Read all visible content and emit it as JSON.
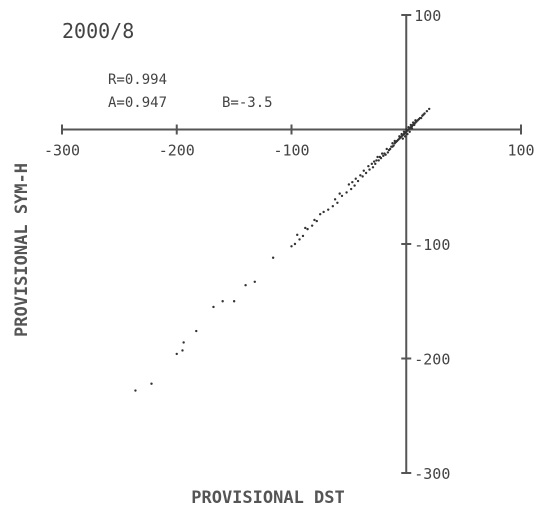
{
  "chart_data": {
    "type": "scatter",
    "title": "2000/8",
    "xlabel": "PROVISIONAL DST",
    "ylabel": "PROVISIONAL SYM-H",
    "xlim": [
      -300,
      100
    ],
    "ylim": [
      -300,
      100
    ],
    "x_ticks": [
      -300,
      -200,
      -100,
      100
    ],
    "y_ticks": [
      100,
      -100,
      -200,
      -300
    ],
    "x_tick_labels": [
      "-300",
      "-200",
      "-100",
      "100"
    ],
    "y_tick_labels": [
      "100",
      "-100",
      "-200",
      "-300"
    ],
    "grid": false,
    "legend": "none",
    "stats": {
      "r": "R=0.994",
      "a": "A=0.947",
      "b": "B=-3.5"
    },
    "series": [
      {
        "points": [
          [
            -236,
            -228
          ],
          [
            -222,
            -222
          ],
          [
            -200,
            -196
          ],
          [
            -195,
            -193
          ],
          [
            -194,
            -186
          ],
          [
            -183,
            -176
          ],
          [
            -168,
            -155
          ],
          [
            -160,
            -150
          ],
          [
            -150,
            -150
          ],
          [
            -140,
            -136
          ],
          [
            -132,
            -133
          ],
          [
            -116,
            -112
          ],
          [
            -100,
            -102
          ],
          [
            -97,
            -100
          ],
          [
            -93,
            -96
          ],
          [
            -90,
            -93
          ],
          [
            -86,
            -87
          ],
          [
            -82,
            -84
          ],
          [
            -78,
            -80
          ],
          [
            -72,
            -72
          ],
          [
            -68,
            -70
          ],
          [
            -64,
            -67
          ],
          [
            -60,
            -64
          ],
          [
            -56,
            -58
          ],
          [
            -52,
            -55
          ],
          [
            -48,
            -52
          ],
          [
            -45,
            -49
          ],
          [
            -42,
            -45
          ],
          [
            -38,
            -41
          ],
          [
            -35,
            -38
          ],
          [
            -32,
            -35
          ],
          [
            -29,
            -33
          ],
          [
            -27,
            -30
          ],
          [
            -24,
            -27
          ],
          [
            -22,
            -25
          ],
          [
            -20,
            -23
          ],
          [
            -18,
            -22
          ],
          [
            -16,
            -20
          ],
          [
            -14,
            -17
          ],
          [
            -12,
            -15
          ],
          [
            -11,
            -14
          ],
          [
            -10,
            -12
          ],
          [
            -9,
            -11
          ],
          [
            -8,
            -10
          ],
          [
            -7,
            -9
          ],
          [
            -6,
            -8
          ],
          [
            -5,
            -7
          ],
          [
            -4,
            -6
          ],
          [
            -3,
            -5
          ],
          [
            -2,
            -4
          ],
          [
            -1,
            -3
          ],
          [
            0,
            -2
          ],
          [
            1,
            -1
          ],
          [
            2,
            0
          ],
          [
            3,
            1
          ],
          [
            4,
            2
          ],
          [
            5,
            3
          ],
          [
            6,
            4
          ],
          [
            7,
            5
          ],
          [
            8,
            6
          ],
          [
            9,
            7
          ],
          [
            10,
            8
          ],
          [
            11,
            9
          ],
          [
            12,
            10
          ],
          [
            13,
            10
          ],
          [
            14,
            12
          ],
          [
            15,
            13
          ],
          [
            16,
            14
          ],
          [
            18,
            16
          ],
          [
            20,
            18
          ],
          [
            -30,
            -30
          ],
          [
            -26,
            -27
          ],
          [
            -23,
            -24
          ],
          [
            -19,
            -21
          ],
          [
            -15,
            -18
          ],
          [
            -13,
            -15
          ],
          [
            -17,
            -17
          ],
          [
            -21,
            -21
          ],
          [
            -25,
            -24
          ],
          [
            -28,
            -28
          ],
          [
            -33,
            -32
          ],
          [
            -37,
            -36
          ],
          [
            -40,
            -40
          ],
          [
            -44,
            -43
          ],
          [
            -47,
            -46
          ],
          [
            -50,
            -48
          ],
          [
            -58,
            -56
          ],
          [
            -62,
            -61
          ],
          [
            -75,
            -74
          ],
          [
            -80,
            -79
          ],
          [
            -88,
            -86
          ],
          [
            -95,
            -92
          ],
          [
            -6,
            -6
          ],
          [
            -4,
            -4
          ],
          [
            -2,
            -2
          ],
          [
            0,
            0
          ],
          [
            2,
            2
          ],
          [
            4,
            4
          ],
          [
            6,
            6
          ],
          [
            8,
            8
          ],
          [
            -10,
            -10
          ],
          [
            -12,
            -12
          ],
          [
            5,
            1
          ],
          [
            7,
            4
          ],
          [
            3,
            -2
          ],
          [
            1,
            -4
          ],
          [
            -1,
            -6
          ],
          [
            -3,
            -8
          ]
        ]
      }
    ]
  }
}
